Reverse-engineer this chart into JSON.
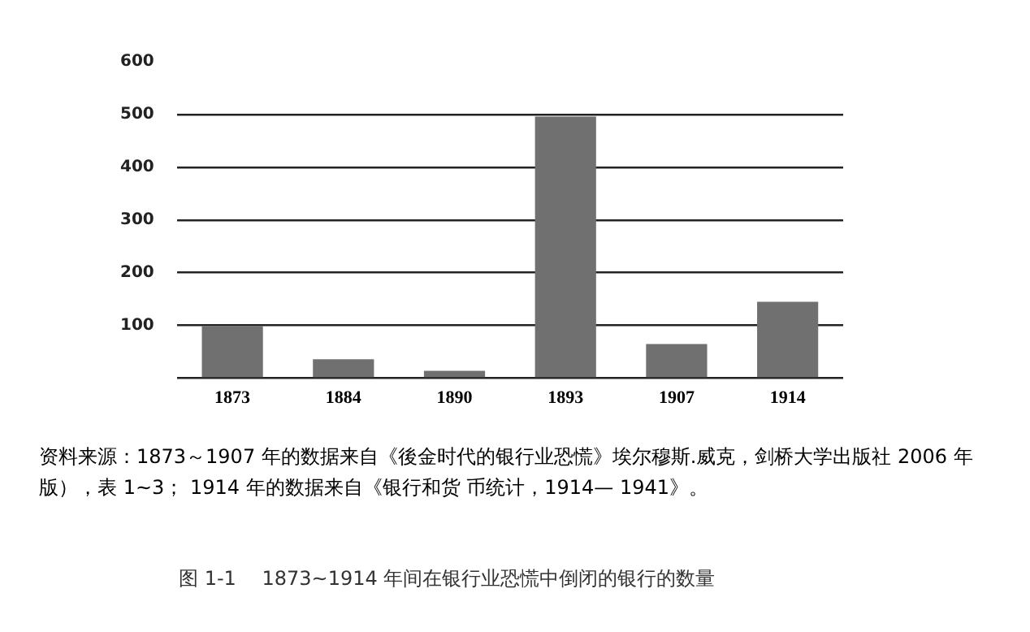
{
  "chart_data": {
    "type": "bar",
    "categories": [
      "1873",
      "1884",
      "1890",
      "1893",
      "1907",
      "1914"
    ],
    "values": [
      99,
      36,
      14,
      496,
      65,
      145
    ],
    "color": "#707070",
    "ylim": [
      0,
      600
    ],
    "yticks": [
      {
        "value": 0,
        "label": null
      },
      100,
      200,
      300,
      400,
      500,
      600
    ],
    "grid": "y",
    "legend": false,
    "annotations": [
      "资料来源：1873～1907 年的数据来自《後金时代的银行业恐慌》埃尔穆斯.威克，剑桥大学出版社 2006 年版），表 1~3； 1914 年的数据来自《银行和货 币统计，1914— 1941》。",
      "图 1-1　 1873~1914 年间在银行业恐慌中倒闭的银行的数量"
    ]
  }
}
